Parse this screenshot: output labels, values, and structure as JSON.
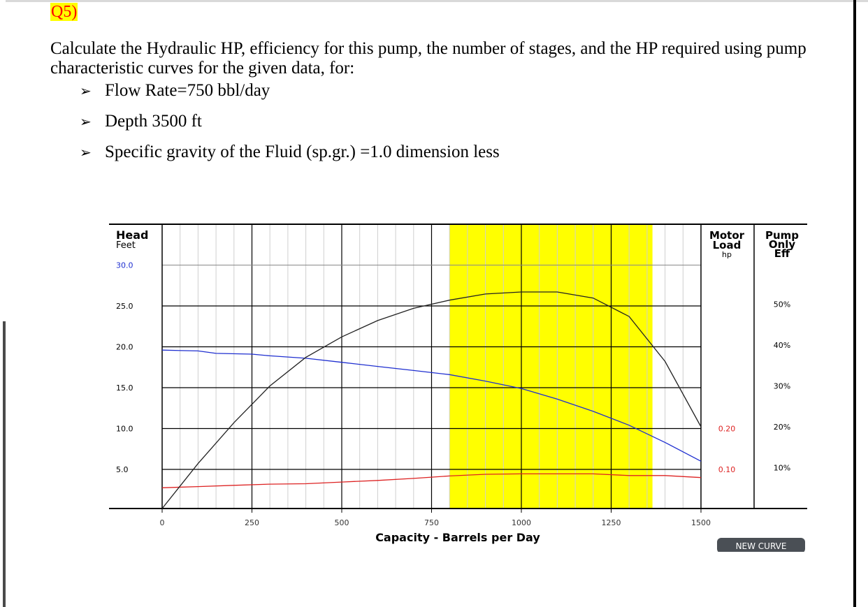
{
  "question": {
    "label": "Q5)",
    "intro": "Calculate the Hydraulic HP, efficiency for this pump, the number of stages, and the HP required using pump characteristic curves for the given data, for:",
    "bullets": [
      "Flow Rate=750 bbl/day",
      "Depth 3500 ft",
      "Specific gravity of the Fluid (sp.gr.) =1.0 dimension less"
    ],
    "bullet_icon": "arrow-bullet-icon"
  },
  "colors": {
    "question_label": "#ff0000",
    "question_highlight": "#ffff00",
    "head_curve": "#1f2fd0",
    "motor_load_curve": "#dd2222",
    "efficiency_curve": "#222222",
    "recommended_range": "#ffff00"
  },
  "chart_data": {
    "type": "line",
    "xlabel": "Capacity - Barrels per Day",
    "x_ticks": [
      "0",
      "250",
      "500",
      "750",
      "1000",
      "1250",
      "1500"
    ],
    "xlim": [
      0,
      1500
    ],
    "left_axis": {
      "title_1": "Head",
      "title_2": "Feet",
      "ticks": [
        "30.0",
        "25.0",
        "20.0",
        "15.0",
        "10.0",
        "5.0"
      ],
      "ylim": [
        0,
        30
      ]
    },
    "motor_axis": {
      "title_1": "Motor",
      "title_2": "Load",
      "title_3": "hp",
      "ticks": [
        "0.20",
        "0.10"
      ]
    },
    "eff_axis": {
      "title_1": "Pump",
      "title_2": "Only",
      "title_3": "Eff",
      "ticks": [
        "50%",
        "40%",
        "30%",
        "20%",
        "10%"
      ]
    },
    "recommended_range": [
      800,
      1365
    ],
    "grid": true,
    "series": [
      {
        "axis": "head",
        "x": [
          0,
          100,
          150,
          250,
          300,
          400,
          500,
          600,
          700,
          800,
          900,
          1000,
          1100,
          1200,
          1300,
          1400,
          1500
        ],
        "values": [
          19.6,
          19.5,
          19.2,
          19.1,
          18.9,
          18.6,
          18.1,
          17.6,
          17.1,
          16.6,
          15.8,
          14.9,
          13.6,
          12.1,
          10.4,
          8.3,
          6.0
        ]
      },
      {
        "axis": "motor_load",
        "x": [
          0,
          100,
          200,
          300,
          400,
          500,
          600,
          700,
          800,
          900,
          1000,
          1100,
          1200,
          1300,
          1400,
          1500
        ],
        "values": [
          0.055,
          0.058,
          0.061,
          0.064,
          0.065,
          0.069,
          0.073,
          0.078,
          0.084,
          0.088,
          0.089,
          0.089,
          0.089,
          0.085,
          0.085,
          0.08
        ]
      },
      {
        "axis": "efficiency",
        "x": [
          0,
          100,
          200,
          300,
          400,
          500,
          600,
          700,
          800,
          900,
          1000,
          1100,
          1200,
          1300,
          1400,
          1500
        ],
        "values": [
          0,
          11,
          21,
          30,
          37,
          42,
          46,
          49,
          51,
          52.5,
          53,
          53,
          51.5,
          47,
          36,
          20
        ]
      }
    ]
  },
  "button": {
    "label": "NEW CURVE"
  }
}
